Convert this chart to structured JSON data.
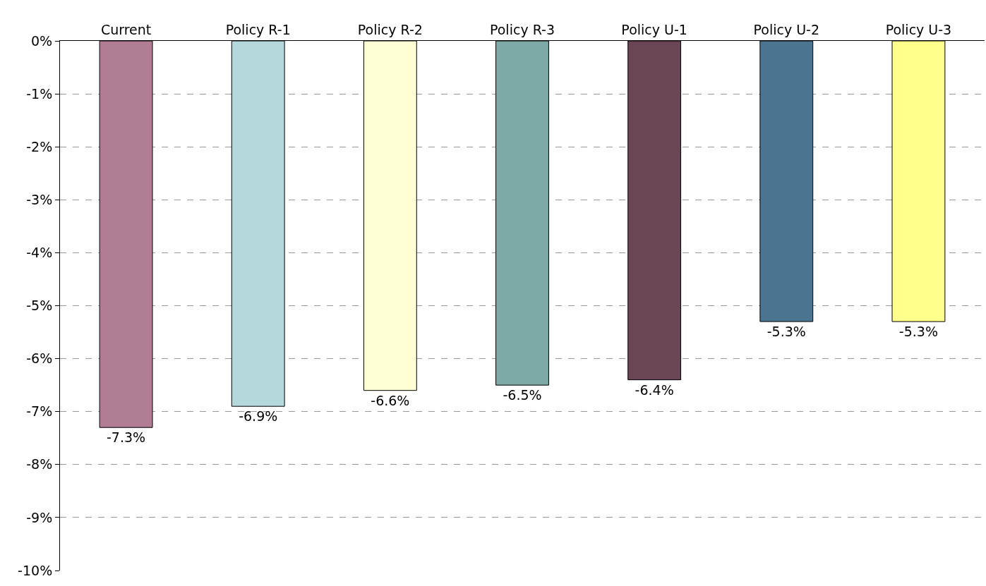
{
  "chart_data": {
    "type": "bar",
    "categories": [
      "Current",
      "Policy R-1",
      "Policy R-2",
      "Policy R-3",
      "Policy U-1",
      "Policy U-2",
      "Policy U-3"
    ],
    "values": [
      -7.3,
      -6.9,
      -6.6,
      -6.5,
      -6.4,
      -5.3,
      -5.3
    ],
    "value_labels": [
      "-7.3%",
      "-6.9%",
      "-6.6%",
      "-6.5%",
      "-6.4%",
      "-5.3%",
      "-5.3%"
    ],
    "colors": [
      "#b07d95",
      "#b5d8dd",
      "#ffffd5",
      "#7da9a7",
      "#6a4555",
      "#4b7491",
      "#ffff8c"
    ],
    "ylim": [
      -10,
      0
    ],
    "yticks": [
      {
        "value": 0,
        "label": "0%"
      },
      {
        "value": -1,
        "label": "-1%"
      },
      {
        "value": -2,
        "label": "-2%"
      },
      {
        "value": -3,
        "label": "-3%"
      },
      {
        "value": -4,
        "label": "-4%"
      },
      {
        "value": -5,
        "label": "-5%"
      },
      {
        "value": -6,
        "label": "-6%"
      },
      {
        "value": -7,
        "label": "-7%"
      },
      {
        "value": -8,
        "label": "-8%"
      },
      {
        "value": -9,
        "label": "-9%"
      },
      {
        "value": -10,
        "label": "-10%"
      }
    ],
    "grid": "y"
  }
}
